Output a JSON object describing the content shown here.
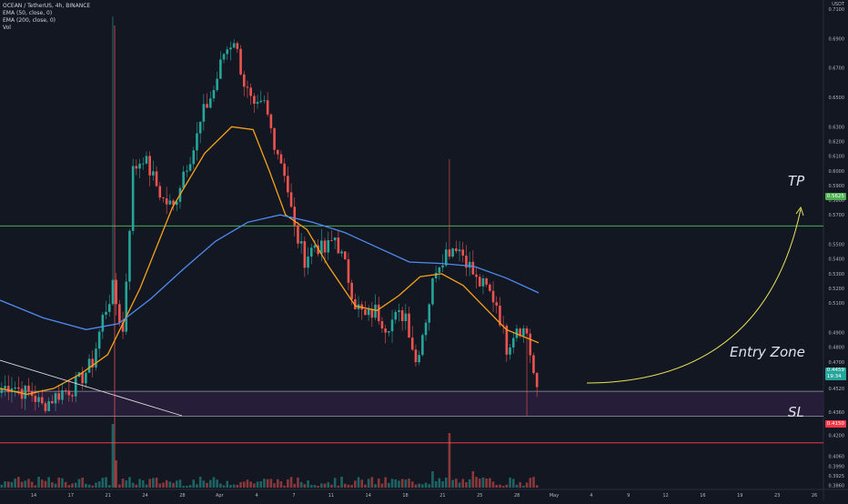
{
  "legend": {
    "symbol_line": "OCEAN / TetherUS, 4h, BINANCE",
    "ema50_line": "EMA (50, close, 0)",
    "ema200_line": "EMA (200, close, 0)",
    "vol_line": "Vol"
  },
  "corner_unit": "USDT",
  "annotations": {
    "tp": "TP",
    "entry": "Entry Zone",
    "sl": "SL"
  },
  "price_tags": {
    "tp_value": "0.5625",
    "current_value": "0.4459",
    "current_timer": "19:34",
    "sl_value": "0.4150"
  },
  "colors": {
    "background": "#131722",
    "up_candle": "#26a69a",
    "down_candle": "#ef5350",
    "ema50": "#f7a21b",
    "ema200": "#4f8bf0",
    "tp_line": "#4caf50",
    "sl_line": "#f23645",
    "entry_zone_fill": "#2a1f3d",
    "arrow": "#e8e35a",
    "trendline": "#e0e0e0"
  },
  "chart_data": {
    "type": "candlestick",
    "title": "OCEAN / TetherUS, 4h, BINANCE",
    "y_axis": {
      "ylim": [
        0.3845,
        0.7162
      ],
      "tick_labels": [
        "0.7100",
        "0.6900",
        "0.6700",
        "0.6500",
        "0.6300",
        "0.6200",
        "0.6100",
        "0.6000",
        "0.5900",
        "0.5800",
        "0.5700",
        "0.5500",
        "0.5400",
        "0.5300",
        "0.5200",
        "0.5100",
        "0.4900",
        "0.4800",
        "0.4700",
        "0.4600",
        "0.4520",
        "0.4360",
        "0.4280",
        "0.4200",
        "0.4060",
        "0.3990",
        "0.3925",
        "0.3860"
      ]
    },
    "x_axis": {
      "tick_labels": [
        "14",
        "17",
        "21",
        "24",
        "28",
        "Apr",
        "4",
        "7",
        "11",
        "14",
        "18",
        "21",
        "25",
        "28",
        "May",
        "4",
        "9",
        "12",
        "16",
        "19",
        "23",
        "26"
      ]
    },
    "levels": {
      "take_profit": 0.5625,
      "entry_zone": [
        0.433,
        0.45
      ],
      "stop_loss": 0.415
    },
    "series": [
      {
        "name": "Price (4h)",
        "keypoints_close": [
          0.452,
          0.455,
          0.45,
          0.448,
          0.44,
          0.445,
          0.45,
          0.452,
          0.46,
          0.47,
          0.5,
          0.52,
          0.49,
          0.6,
          0.61,
          0.595,
          0.58,
          0.575,
          0.6,
          0.615,
          0.64,
          0.655,
          0.68,
          0.69,
          0.66,
          0.64,
          0.645,
          0.62,
          0.6,
          0.56,
          0.54,
          0.55,
          0.545,
          0.555,
          0.535,
          0.51,
          0.5,
          0.505,
          0.495,
          0.5,
          0.503,
          0.47,
          0.5,
          0.535,
          0.545,
          0.55,
          0.54,
          0.525,
          0.52,
          0.51,
          0.48,
          0.495,
          0.49,
          0.448
        ]
      },
      {
        "name": "EMA (50, close, 0)",
        "points": [
          [
            0,
            0.452
          ],
          [
            0.05,
            0.448
          ],
          [
            0.1,
            0.452
          ],
          [
            0.15,
            0.462
          ],
          [
            0.2,
            0.475
          ],
          [
            0.26,
            0.52
          ],
          [
            0.32,
            0.575
          ],
          [
            0.38,
            0.612
          ],
          [
            0.43,
            0.63
          ],
          [
            0.47,
            0.628
          ],
          [
            0.5,
            0.6
          ],
          [
            0.53,
            0.57
          ],
          [
            0.57,
            0.56
          ],
          [
            0.61,
            0.535
          ],
          [
            0.66,
            0.508
          ],
          [
            0.7,
            0.505
          ],
          [
            0.74,
            0.515
          ],
          [
            0.78,
            0.528
          ],
          [
            0.82,
            0.53
          ],
          [
            0.86,
            0.522
          ],
          [
            0.9,
            0.507
          ],
          [
            0.94,
            0.492
          ],
          [
            1.0,
            0.483
          ]
        ]
      },
      {
        "name": "EMA (200, close, 0)",
        "points": [
          [
            0,
            0.512
          ],
          [
            0.08,
            0.5
          ],
          [
            0.16,
            0.492
          ],
          [
            0.22,
            0.496
          ],
          [
            0.28,
            0.513
          ],
          [
            0.34,
            0.533
          ],
          [
            0.4,
            0.552
          ],
          [
            0.46,
            0.565
          ],
          [
            0.52,
            0.57
          ],
          [
            0.58,
            0.565
          ],
          [
            0.64,
            0.558
          ],
          [
            0.7,
            0.548
          ],
          [
            0.76,
            0.538
          ],
          [
            0.82,
            0.537
          ],
          [
            0.88,
            0.535
          ],
          [
            0.94,
            0.527
          ],
          [
            1.0,
            0.517
          ]
        ]
      }
    ]
  }
}
